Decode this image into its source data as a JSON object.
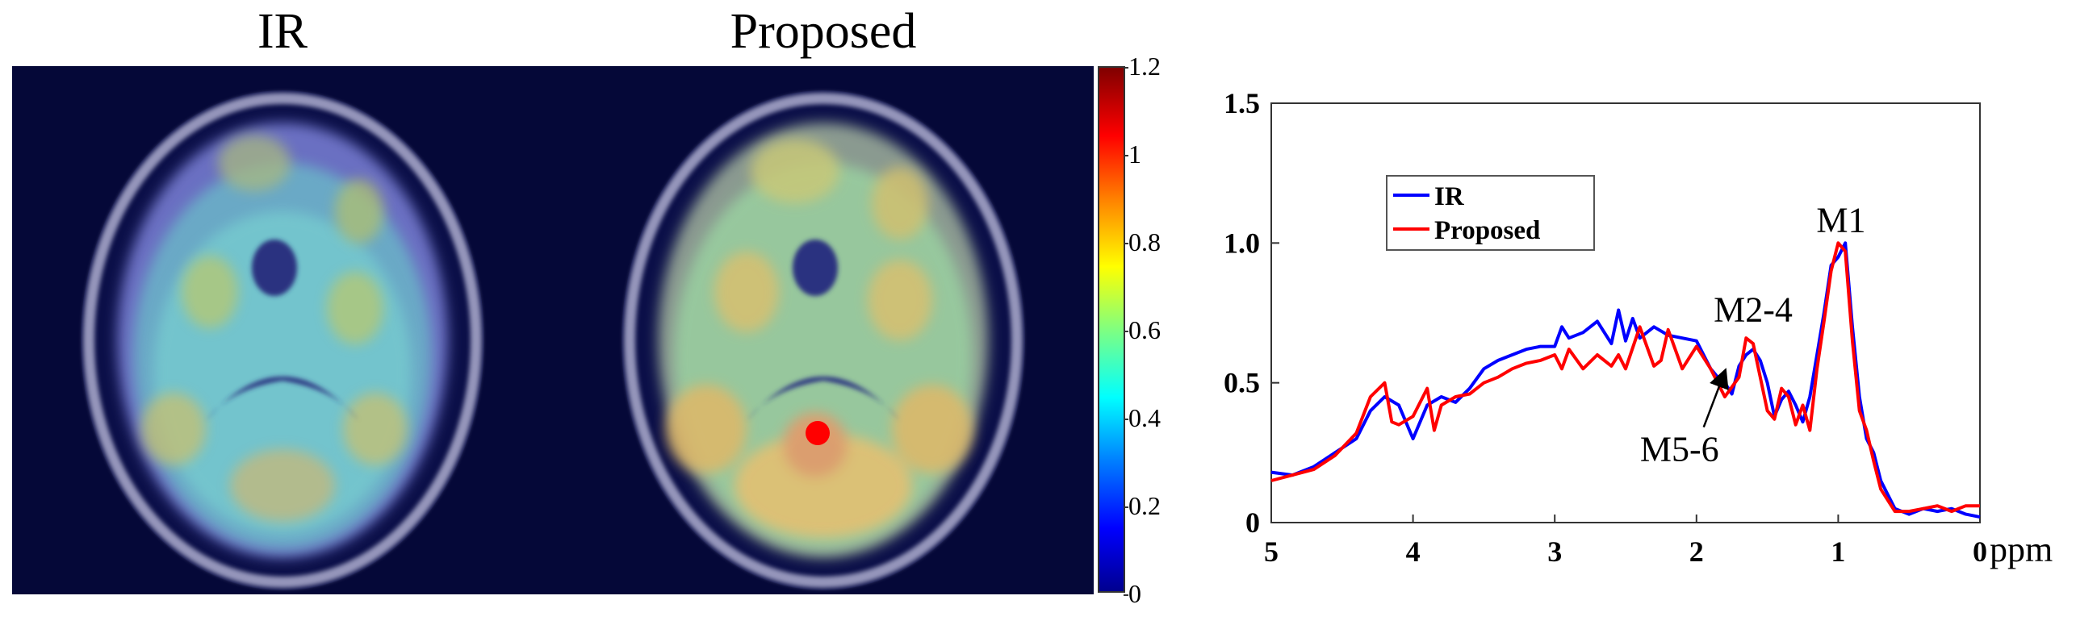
{
  "panels": {
    "left_title": "IR",
    "right_title": "Proposed"
  },
  "colorbar": {
    "ticks": [
      "0",
      "0.2",
      "0.4",
      "0.6",
      "0.8",
      "1",
      "1.2"
    ],
    "range": [
      0,
      1.2
    ],
    "colormap": "jet"
  },
  "voxel_marker_color": "#ff0000",
  "chart_data": {
    "type": "line",
    "title": "",
    "xlabel": "ppm",
    "ylabel": "",
    "xlim": [
      5,
      0
    ],
    "ylim": [
      0,
      1.5
    ],
    "x_reversed": true,
    "x_ticks": [
      "5",
      "4",
      "3",
      "2",
      "1",
      "0"
    ],
    "y_ticks": [
      "0",
      "0.5",
      "1.0",
      "1.5"
    ],
    "x_tick_values": [
      5,
      4,
      3,
      2,
      1,
      0
    ],
    "y_tick_values": [
      0,
      0.5,
      1.0,
      1.5
    ],
    "legend_position": "top-left",
    "series": [
      {
        "name": "IR",
        "color": "#0000ff",
        "x": [
          5.0,
          4.85,
          4.7,
          4.55,
          4.4,
          4.3,
          4.2,
          4.1,
          4.0,
          3.9,
          3.8,
          3.7,
          3.6,
          3.5,
          3.4,
          3.3,
          3.2,
          3.1,
          3.0,
          2.95,
          2.9,
          2.8,
          2.7,
          2.6,
          2.55,
          2.5,
          2.45,
          2.4,
          2.3,
          2.2,
          2.1,
          2.0,
          1.95,
          1.9,
          1.85,
          1.8,
          1.75,
          1.7,
          1.65,
          1.6,
          1.55,
          1.5,
          1.45,
          1.4,
          1.35,
          1.3,
          1.25,
          1.2,
          1.15,
          1.1,
          1.05,
          1.0,
          0.95,
          0.9,
          0.85,
          0.8,
          0.75,
          0.7,
          0.6,
          0.5,
          0.4,
          0.3,
          0.2,
          0.1,
          0.0
        ],
        "y": [
          0.18,
          0.17,
          0.2,
          0.25,
          0.3,
          0.4,
          0.45,
          0.42,
          0.3,
          0.42,
          0.45,
          0.43,
          0.48,
          0.55,
          0.58,
          0.6,
          0.62,
          0.63,
          0.63,
          0.7,
          0.66,
          0.68,
          0.72,
          0.64,
          0.76,
          0.65,
          0.73,
          0.66,
          0.7,
          0.67,
          0.66,
          0.65,
          0.6,
          0.55,
          0.52,
          0.5,
          0.46,
          0.56,
          0.6,
          0.62,
          0.58,
          0.5,
          0.38,
          0.44,
          0.47,
          0.42,
          0.36,
          0.45,
          0.6,
          0.75,
          0.92,
          0.95,
          1.0,
          0.7,
          0.45,
          0.3,
          0.25,
          0.15,
          0.05,
          0.03,
          0.05,
          0.04,
          0.05,
          0.03,
          0.02
        ]
      },
      {
        "name": "Proposed",
        "color": "#ff0000",
        "x": [
          5.0,
          4.85,
          4.7,
          4.55,
          4.4,
          4.3,
          4.2,
          4.15,
          4.1,
          4.0,
          3.9,
          3.85,
          3.8,
          3.7,
          3.6,
          3.5,
          3.4,
          3.3,
          3.2,
          3.1,
          3.0,
          2.95,
          2.9,
          2.8,
          2.7,
          2.6,
          2.55,
          2.5,
          2.4,
          2.3,
          2.25,
          2.2,
          2.1,
          2.0,
          1.9,
          1.85,
          1.8,
          1.7,
          1.65,
          1.6,
          1.5,
          1.45,
          1.4,
          1.35,
          1.3,
          1.25,
          1.2,
          1.15,
          1.1,
          1.05,
          1.0,
          0.95,
          0.9,
          0.85,
          0.8,
          0.75,
          0.7,
          0.6,
          0.5,
          0.4,
          0.3,
          0.2,
          0.1,
          0.0
        ],
        "y": [
          0.15,
          0.17,
          0.19,
          0.24,
          0.32,
          0.45,
          0.5,
          0.36,
          0.35,
          0.38,
          0.48,
          0.33,
          0.42,
          0.45,
          0.46,
          0.5,
          0.52,
          0.55,
          0.57,
          0.58,
          0.6,
          0.55,
          0.62,
          0.55,
          0.6,
          0.56,
          0.6,
          0.55,
          0.7,
          0.56,
          0.58,
          0.69,
          0.55,
          0.63,
          0.55,
          0.5,
          0.45,
          0.52,
          0.66,
          0.64,
          0.4,
          0.37,
          0.48,
          0.45,
          0.35,
          0.42,
          0.33,
          0.55,
          0.72,
          0.9,
          1.0,
          0.97,
          0.65,
          0.4,
          0.33,
          0.22,
          0.12,
          0.04,
          0.04,
          0.05,
          0.06,
          0.04,
          0.06,
          0.06
        ]
      }
    ],
    "annotations": [
      {
        "text": "M1",
        "x": 0.98,
        "y": 1.04
      },
      {
        "text": "M2-4",
        "x": 1.6,
        "y": 0.72
      },
      {
        "text": "M5-6",
        "x": 2.12,
        "y": 0.22,
        "arrow_to": [
          1.8,
          0.54
        ]
      }
    ]
  }
}
